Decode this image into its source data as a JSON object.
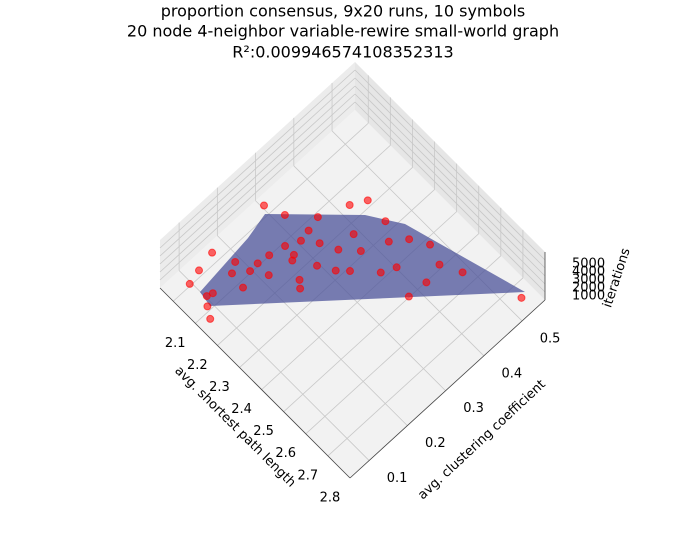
{
  "chart_data": {
    "type": "scatter3d",
    "title": [
      "proportion consensus, 9x20 runs, 10 symbols",
      "20 node 4-neighbor variable-rewire small-world graph",
      "R²:0.009946574108352313"
    ],
    "xlabel": "avg. shortest path length",
    "ylabel": "avg. clustering coefficient",
    "zlabel": "iterations",
    "x": [
      2.13,
      2.19,
      2.28,
      2.26,
      2.24,
      2.24,
      2.21,
      2.21,
      2.2,
      2.22,
      2.12,
      2.13,
      2.26,
      2.29,
      2.31,
      2.36,
      2.37,
      2.33,
      2.28,
      2.38,
      2.38,
      2.34,
      2.42,
      2.47,
      2.43,
      2.45,
      2.42,
      2.54,
      2.51,
      2.57,
      2.63,
      2.7,
      2.64,
      2.63,
      2.52,
      2.88,
      2.27,
      2.25,
      2.14,
      2.19,
      2.31,
      2.38,
      2.24,
      2.3
    ],
    "y": [
      0.27,
      0.29,
      0.28,
      0.25,
      0.22,
      0.17,
      0.14,
      0.09,
      0.08,
      0.07,
      0.14,
      0.1,
      0.14,
      0.19,
      0.24,
      0.23,
      0.27,
      0.3,
      0.3,
      0.32,
      0.36,
      0.42,
      0.42,
      0.4,
      0.35,
      0.31,
      0.29,
      0.38,
      0.43,
      0.45,
      0.44,
      0.46,
      0.4,
      0.36,
      0.35,
      0.51,
      0.33,
      0.06,
      0.07,
      0.16,
      0.39,
      0.22,
      0.19,
      0.25
    ],
    "z": [
      3200,
      2800,
      2500,
      2600,
      2200,
      2400,
      2600,
      2300,
      2100,
      1800,
      2700,
      2500,
      2200,
      2400,
      2600,
      2000,
      2300,
      2700,
      2900,
      2400,
      2600,
      3100,
      2700,
      2400,
      2300,
      2100,
      2200,
      2000,
      2500,
      2600,
      2200,
      2300,
      2000,
      1700,
      2100,
      1900,
      3000,
      1500,
      2400,
      2600,
      3000,
      1900,
      2500,
      2600
    ],
    "color": "#ff0000",
    "surface_color": "#4c5399",
    "xlim": [
      2.04,
      2.9
    ],
    "ylim": [
      0.05,
      0.56
    ],
    "zlim": [
      0,
      6000
    ],
    "xticks": [
      2.1,
      2.2,
      2.3,
      2.4,
      2.5,
      2.6,
      2.7,
      2.8
    ],
    "yticks": [
      0.1,
      0.2,
      0.3,
      0.4,
      0.5
    ],
    "zticks": [
      1000,
      2000,
      3000,
      4000,
      5000
    ],
    "grid": true
  }
}
